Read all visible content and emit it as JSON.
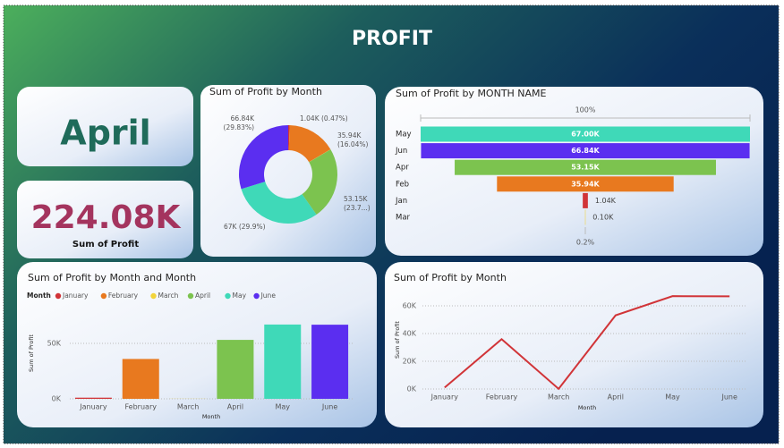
{
  "title": "PROFIT",
  "cards": [
    {
      "value": "April"
    },
    {
      "value": "224.08K",
      "label": "Sum of Profit"
    }
  ],
  "chart_data": [
    {
      "type": "donut",
      "title": "Sum of Profit by Month",
      "categories": [
        "January",
        "February",
        "March",
        "April",
        "May",
        "June"
      ],
      "values": [
        1040,
        35940,
        100,
        53150,
        67000,
        66840
      ],
      "value_labels": [
        "1.04K (0.47%)",
        "35.94K (16.04%)",
        null,
        "53.15K (23.7...)",
        "67K (29.9%)",
        "66.84K (29.83%)"
      ],
      "colors": [
        "#d13438",
        "#e8791f",
        "#f2d43a",
        "#7cc34f",
        "#3fd9b8",
        "#5b2ef0"
      ]
    },
    {
      "type": "funnel",
      "title": "Sum of Profit by MONTH NAME",
      "categories": [
        "May",
        "Jun",
        "Apr",
        "Feb",
        "Jan",
        "Mar"
      ],
      "values": [
        67000,
        66840,
        53150,
        35940,
        1040,
        100
      ],
      "value_labels": [
        "67.00K",
        "66.84K",
        "53.15K",
        "35.94K",
        "1.04K",
        "0.10K"
      ],
      "colors": [
        "#3fd9b8",
        "#5b2ef0",
        "#7cc34f",
        "#e8791f",
        "#d13438",
        "#f2d43a"
      ],
      "top_label": "100%",
      "bottom_label": "0.2%"
    },
    {
      "type": "bar",
      "title": "Sum of Profit by Month and Month",
      "legend_title": "Month",
      "categories": [
        "January",
        "February",
        "March",
        "April",
        "May",
        "June"
      ],
      "values": [
        1040,
        35940,
        100,
        53150,
        67000,
        66840
      ],
      "colors": [
        "#d13438",
        "#e8791f",
        "#f2d43a",
        "#7cc34f",
        "#3fd9b8",
        "#5b2ef0"
      ],
      "ylim": [
        0,
        75000
      ],
      "yticks": [
        {
          "value": 0,
          "label": "0K"
        },
        {
          "value": 50000,
          "label": "50K"
        }
      ],
      "y_label": "Sum of Profit",
      "x_label": "Month",
      "grid": true
    },
    {
      "type": "line",
      "title": "Sum of Profit by Month",
      "categories": [
        "January",
        "February",
        "March",
        "April",
        "May",
        "June"
      ],
      "values": [
        1040,
        35940,
        100,
        53150,
        67000,
        66840
      ],
      "color": "#d13438",
      "ylim": [
        0,
        70000
      ],
      "yticks": [
        {
          "value": 0,
          "label": "0K"
        },
        {
          "value": 20000,
          "label": "20K"
        },
        {
          "value": 40000,
          "label": "40K"
        },
        {
          "value": 60000,
          "label": "60K"
        }
      ],
      "y_label": "Sum of Profit",
      "x_label": "Month",
      "grid": true
    }
  ]
}
